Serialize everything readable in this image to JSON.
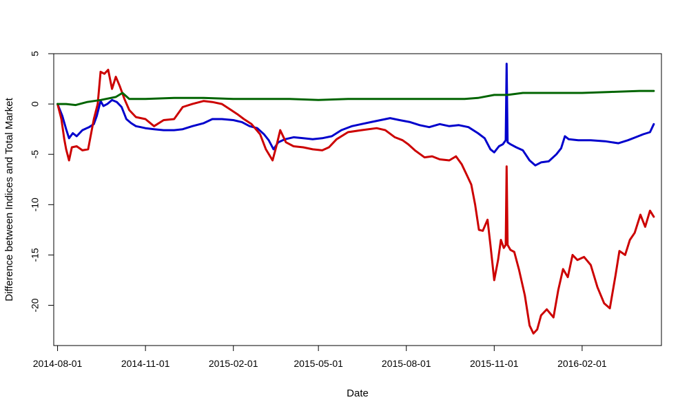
{
  "chart_data": {
    "type": "line",
    "title": "",
    "xlabel": "Date",
    "ylabel": "Difference between Indices and Total Market",
    "x_ticks": [
      "2014-08-01",
      "2014-11-01",
      "2015-02-01",
      "2015-05-01",
      "2015-08-01",
      "2015-11-01",
      "2016-02-01"
    ],
    "y_ticks": [
      5,
      0,
      -5,
      -10,
      -15,
      -20
    ],
    "xlim": [
      "2014-07-28",
      "2016-04-24"
    ],
    "ylim": [
      -24,
      5
    ],
    "grid": false,
    "legend": "none",
    "colors": {
      "blue": "#0000cc",
      "red": "#cc0000",
      "green": "#006400"
    },
    "series": [
      {
        "color": "blue",
        "points": [
          [
            "2014-08-01",
            0
          ],
          [
            "2014-08-06",
            -1.2
          ],
          [
            "2014-08-10",
            -2.5
          ],
          [
            "2014-08-13",
            -3.4
          ],
          [
            "2014-08-17",
            -2.9
          ],
          [
            "2014-08-21",
            -3.2
          ],
          [
            "2014-08-27",
            -2.6
          ],
          [
            "2014-09-03",
            -2.3
          ],
          [
            "2014-09-08",
            -2.0
          ],
          [
            "2014-09-11",
            -1.2
          ],
          [
            "2014-09-15",
            0.3
          ],
          [
            "2014-09-18",
            -0.2
          ],
          [
            "2014-09-22",
            0.0
          ],
          [
            "2014-09-27",
            0.4
          ],
          [
            "2014-10-02",
            0.2
          ],
          [
            "2014-10-07",
            -0.3
          ],
          [
            "2014-10-12",
            -1.5
          ],
          [
            "2014-10-17",
            -1.9
          ],
          [
            "2014-10-22",
            -2.2
          ],
          [
            "2014-10-27",
            -2.3
          ],
          [
            "2014-11-01",
            -2.4
          ],
          [
            "2014-11-10",
            -2.5
          ],
          [
            "2014-11-20",
            -2.6
          ],
          [
            "2014-12-01",
            -2.6
          ],
          [
            "2014-12-10",
            -2.5
          ],
          [
            "2014-12-20",
            -2.2
          ],
          [
            "2015-01-01",
            -1.9
          ],
          [
            "2015-01-10",
            -1.5
          ],
          [
            "2015-01-20",
            -1.5
          ],
          [
            "2015-02-01",
            -1.6
          ],
          [
            "2015-02-10",
            -1.8
          ],
          [
            "2015-02-18",
            -2.2
          ],
          [
            "2015-02-26",
            -2.4
          ],
          [
            "2015-03-05",
            -3.0
          ],
          [
            "2015-03-10",
            -3.6
          ],
          [
            "2015-03-15",
            -4.5
          ],
          [
            "2015-03-20",
            -3.8
          ],
          [
            "2015-03-27",
            -3.5
          ],
          [
            "2015-04-05",
            -3.3
          ],
          [
            "2015-04-15",
            -3.4
          ],
          [
            "2015-04-25",
            -3.5
          ],
          [
            "2015-05-05",
            -3.4
          ],
          [
            "2015-05-15",
            -3.2
          ],
          [
            "2015-05-25",
            -2.6
          ],
          [
            "2015-06-05",
            -2.2
          ],
          [
            "2015-06-15",
            -2.0
          ],
          [
            "2015-06-25",
            -1.8
          ],
          [
            "2015-07-05",
            -1.6
          ],
          [
            "2015-07-15",
            -1.4
          ],
          [
            "2015-07-25",
            -1.6
          ],
          [
            "2015-08-05",
            -1.8
          ],
          [
            "2015-08-15",
            -2.1
          ],
          [
            "2015-08-25",
            -2.3
          ],
          [
            "2015-09-05",
            -2.0
          ],
          [
            "2015-09-15",
            -2.2
          ],
          [
            "2015-09-25",
            -2.1
          ],
          [
            "2015-10-05",
            -2.3
          ],
          [
            "2015-10-15",
            -2.9
          ],
          [
            "2015-10-22",
            -3.4
          ],
          [
            "2015-10-28",
            -4.5
          ],
          [
            "2015-11-01",
            -4.8
          ],
          [
            "2015-11-06",
            -4.2
          ],
          [
            "2015-11-10",
            -4.0
          ],
          [
            "2015-11-13",
            -3.6
          ],
          [
            "2015-11-14",
            4.0
          ],
          [
            "2015-11-15",
            -3.8
          ],
          [
            "2015-11-18",
            -4.0
          ],
          [
            "2015-11-24",
            -4.3
          ],
          [
            "2015-12-01",
            -4.6
          ],
          [
            "2015-12-08",
            -5.6
          ],
          [
            "2015-12-14",
            -6.1
          ],
          [
            "2015-12-20",
            -5.8
          ],
          [
            "2015-12-28",
            -5.7
          ],
          [
            "2016-01-05",
            -5.0
          ],
          [
            "2016-01-10",
            -4.4
          ],
          [
            "2016-01-14",
            -3.2
          ],
          [
            "2016-01-18",
            -3.5
          ],
          [
            "2016-01-28",
            -3.6
          ],
          [
            "2016-02-10",
            -3.6
          ],
          [
            "2016-02-25",
            -3.7
          ],
          [
            "2016-03-10",
            -3.9
          ],
          [
            "2016-03-20",
            -3.6
          ],
          [
            "2016-03-28",
            -3.3
          ],
          [
            "2016-04-05",
            -3.0
          ],
          [
            "2016-04-12",
            -2.8
          ],
          [
            "2016-04-16",
            -2.0
          ]
        ]
      },
      {
        "color": "red",
        "points": [
          [
            "2014-08-01",
            0
          ],
          [
            "2014-08-05",
            -1.5
          ],
          [
            "2014-08-08",
            -3.5
          ],
          [
            "2014-08-10",
            -4.5
          ],
          [
            "2014-08-13",
            -5.6
          ],
          [
            "2014-08-16",
            -4.3
          ],
          [
            "2014-08-21",
            -4.2
          ],
          [
            "2014-08-27",
            -4.6
          ],
          [
            "2014-09-02",
            -4.5
          ],
          [
            "2014-09-08",
            -1.5
          ],
          [
            "2014-09-12",
            0.0
          ],
          [
            "2014-09-15",
            3.2
          ],
          [
            "2014-09-19",
            3.0
          ],
          [
            "2014-09-23",
            3.4
          ],
          [
            "2014-09-27",
            1.5
          ],
          [
            "2014-10-01",
            2.7
          ],
          [
            "2014-10-05",
            1.8
          ],
          [
            "2014-10-10",
            0.5
          ],
          [
            "2014-10-15",
            -0.6
          ],
          [
            "2014-10-22",
            -1.3
          ],
          [
            "2014-11-01",
            -1.5
          ],
          [
            "2014-11-10",
            -2.2
          ],
          [
            "2014-11-20",
            -1.6
          ],
          [
            "2014-12-01",
            -1.5
          ],
          [
            "2014-12-10",
            -0.3
          ],
          [
            "2014-12-20",
            0.0
          ],
          [
            "2015-01-01",
            0.3
          ],
          [
            "2015-01-10",
            0.2
          ],
          [
            "2015-01-20",
            0.0
          ],
          [
            "2015-01-28",
            -0.5
          ],
          [
            "2015-02-05",
            -1.0
          ],
          [
            "2015-02-12",
            -1.5
          ],
          [
            "2015-02-20",
            -2.0
          ],
          [
            "2015-03-01",
            -3.0
          ],
          [
            "2015-03-07",
            -4.5
          ],
          [
            "2015-03-14",
            -5.6
          ],
          [
            "2015-03-18",
            -4.2
          ],
          [
            "2015-03-22",
            -2.6
          ],
          [
            "2015-03-28",
            -3.8
          ],
          [
            "2015-04-05",
            -4.2
          ],
          [
            "2015-04-15",
            -4.3
          ],
          [
            "2015-04-25",
            -4.5
          ],
          [
            "2015-05-05",
            -4.6
          ],
          [
            "2015-05-12",
            -4.3
          ],
          [
            "2015-05-20",
            -3.5
          ],
          [
            "2015-06-01",
            -2.8
          ],
          [
            "2015-06-15",
            -2.6
          ],
          [
            "2015-07-01",
            -2.4
          ],
          [
            "2015-07-10",
            -2.6
          ],
          [
            "2015-07-20",
            -3.3
          ],
          [
            "2015-07-28",
            -3.6
          ],
          [
            "2015-08-03",
            -4.0
          ],
          [
            "2015-08-10",
            -4.6
          ],
          [
            "2015-08-20",
            -5.3
          ],
          [
            "2015-08-28",
            -5.2
          ],
          [
            "2015-09-05",
            -5.5
          ],
          [
            "2015-09-15",
            -5.6
          ],
          [
            "2015-09-22",
            -5.2
          ],
          [
            "2015-09-28",
            -6.0
          ],
          [
            "2015-10-03",
            -7.0
          ],
          [
            "2015-10-08",
            -8.0
          ],
          [
            "2015-10-12",
            -10.0
          ],
          [
            "2015-10-16",
            -12.5
          ],
          [
            "2015-10-20",
            -12.6
          ],
          [
            "2015-10-25",
            -11.5
          ],
          [
            "2015-10-28",
            -14.0
          ],
          [
            "2015-11-01",
            -17.5
          ],
          [
            "2015-11-05",
            -15.5
          ],
          [
            "2015-11-08",
            -13.5
          ],
          [
            "2015-11-11",
            -14.3
          ],
          [
            "2015-11-13",
            -14.0
          ],
          [
            "2015-11-14",
            -6.2
          ],
          [
            "2015-11-15",
            -14.0
          ],
          [
            "2015-11-18",
            -14.5
          ],
          [
            "2015-11-22",
            -14.7
          ],
          [
            "2015-11-27",
            -16.5
          ],
          [
            "2015-12-03",
            -19.0
          ],
          [
            "2015-12-08",
            -22.0
          ],
          [
            "2015-12-12",
            -22.8
          ],
          [
            "2015-12-16",
            -22.4
          ],
          [
            "2015-12-20",
            -21.0
          ],
          [
            "2015-12-26",
            -20.4
          ],
          [
            "2016-01-02",
            -21.2
          ],
          [
            "2016-01-07",
            -18.5
          ],
          [
            "2016-01-12",
            -16.4
          ],
          [
            "2016-01-17",
            -17.2
          ],
          [
            "2016-01-22",
            -15.0
          ],
          [
            "2016-01-27",
            -15.5
          ],
          [
            "2016-02-03",
            -15.2
          ],
          [
            "2016-02-10",
            -16.0
          ],
          [
            "2016-02-17",
            -18.2
          ],
          [
            "2016-02-24",
            -19.8
          ],
          [
            "2016-03-01",
            -20.3
          ],
          [
            "2016-03-07",
            -17.0
          ],
          [
            "2016-03-11",
            -14.6
          ],
          [
            "2016-03-17",
            -15.0
          ],
          [
            "2016-03-22",
            -13.5
          ],
          [
            "2016-03-27",
            -12.8
          ],
          [
            "2016-04-02",
            -11.0
          ],
          [
            "2016-04-07",
            -12.2
          ],
          [
            "2016-04-12",
            -10.6
          ],
          [
            "2016-04-16",
            -11.2
          ]
        ]
      },
      {
        "color": "green",
        "points": [
          [
            "2014-08-01",
            0
          ],
          [
            "2014-08-10",
            0.0
          ],
          [
            "2014-08-20",
            -0.1
          ],
          [
            "2014-09-01",
            0.2
          ],
          [
            "2014-09-15",
            0.4
          ],
          [
            "2014-10-01",
            0.7
          ],
          [
            "2014-10-08",
            1.1
          ],
          [
            "2014-10-15",
            0.5
          ],
          [
            "2014-11-01",
            0.5
          ],
          [
            "2014-12-01",
            0.6
          ],
          [
            "2015-01-01",
            0.6
          ],
          [
            "2015-02-01",
            0.5
          ],
          [
            "2015-03-01",
            0.5
          ],
          [
            "2015-04-01",
            0.5
          ],
          [
            "2015-05-01",
            0.4
          ],
          [
            "2015-06-01",
            0.5
          ],
          [
            "2015-07-01",
            0.5
          ],
          [
            "2015-08-01",
            0.5
          ],
          [
            "2015-09-01",
            0.5
          ],
          [
            "2015-10-01",
            0.5
          ],
          [
            "2015-10-15",
            0.6
          ],
          [
            "2015-11-01",
            0.9
          ],
          [
            "2015-11-15",
            0.9
          ],
          [
            "2015-12-01",
            1.1
          ],
          [
            "2016-01-01",
            1.1
          ],
          [
            "2016-02-01",
            1.1
          ],
          [
            "2016-03-01",
            1.2
          ],
          [
            "2016-04-01",
            1.3
          ],
          [
            "2016-04-16",
            1.3
          ]
        ]
      }
    ]
  }
}
